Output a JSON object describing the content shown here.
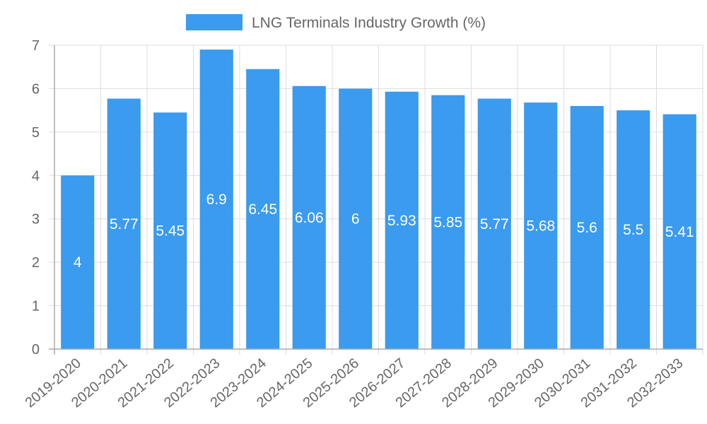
{
  "chart_data": {
    "type": "bar",
    "title": "",
    "xlabel": "",
    "ylabel": "",
    "categories": [
      "2019-2020",
      "2020-2021",
      "2021-2022",
      "2022-2023",
      "2023-2024",
      "2024-2025",
      "2025-2026",
      "2026-2027",
      "2027-2028",
      "2028-2029",
      "2029-2030",
      "2030-2031",
      "2031-2032",
      "2032-2033"
    ],
    "series": [
      {
        "name": "LNG Terminals Industry Growth (%)",
        "values": [
          4,
          5.77,
          5.45,
          6.9,
          6.45,
          6.06,
          6,
          5.93,
          5.85,
          5.77,
          5.68,
          5.6,
          5.5,
          5.41
        ]
      }
    ],
    "ylim": [
      0,
      7
    ],
    "yticks": [
      0,
      1,
      2,
      3,
      4,
      5,
      6,
      7
    ],
    "legend_position": "top",
    "grid": true,
    "bar_color": "#3a9bef",
    "grid_color": "#dddddd",
    "axis_color": "#aaaaaa",
    "text_color": "#666666",
    "label_color": "#ffffff"
  }
}
